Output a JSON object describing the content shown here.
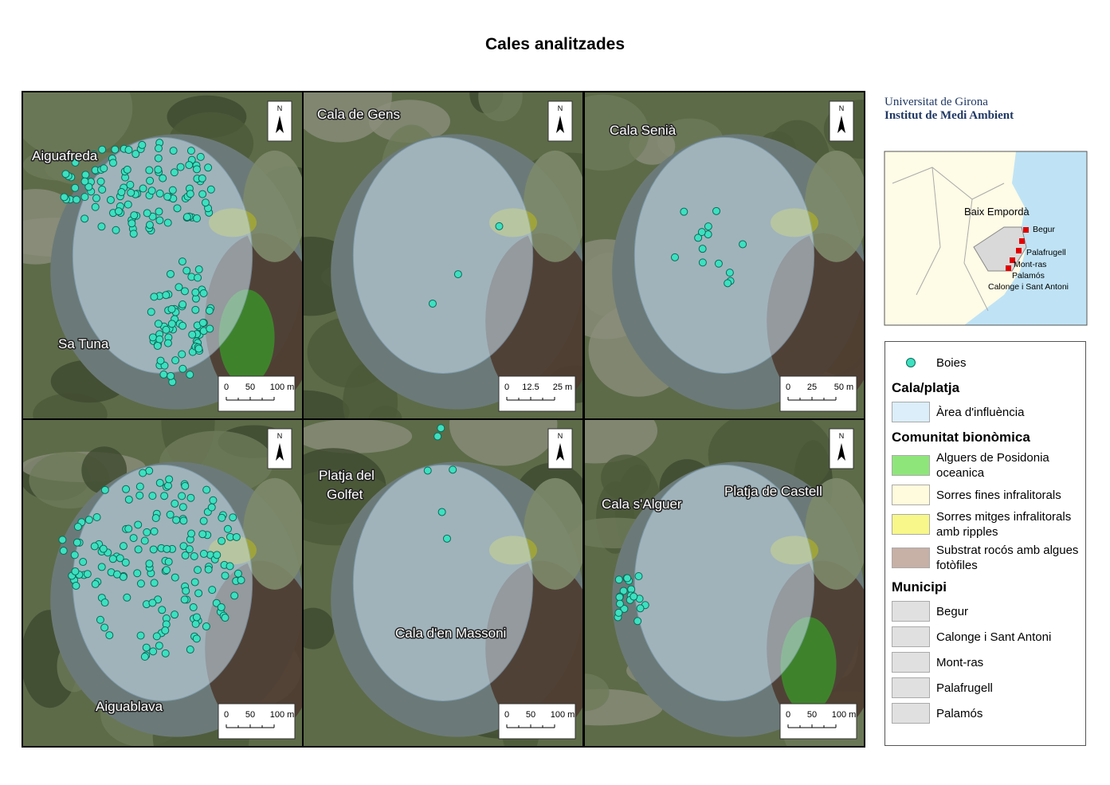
{
  "title": "Cales analitzades",
  "north": "N",
  "panels": [
    {
      "labels": [
        [
          "Aiguafreda"
        ],
        [
          "Sa Tuna"
        ]
      ],
      "scale": [
        "0",
        "50",
        "100 m"
      ]
    },
    {
      "labels": [
        [
          "Cala de Gens"
        ]
      ],
      "scale": [
        "0",
        "12.5",
        "25 m"
      ]
    },
    {
      "labels": [
        [
          "Cala Senià"
        ]
      ],
      "scale": [
        "0",
        "25",
        "50 m"
      ]
    },
    {
      "labels": [
        [
          "Aiguablava"
        ]
      ],
      "scale": [
        "0",
        "50",
        "100 m"
      ]
    },
    {
      "labels": [
        [
          "Platja del",
          "Golfet"
        ],
        [
          "Cala d'en Massoni"
        ]
      ],
      "scale": [
        "0",
        "50",
        "100 m"
      ]
    },
    {
      "labels": [
        [
          "Cala s'Alguer"
        ],
        [
          "Platja de Castell"
        ]
      ],
      "scale": [
        "0",
        "50",
        "100 m"
      ]
    }
  ],
  "logo": {
    "line1": "Universitat de Girona",
    "line2": "Institut de Medi Ambient"
  },
  "inset": {
    "region": "Baix Empordà",
    "towns": [
      "Begur",
      "Palafrugell",
      "Mont-ras",
      "Palamós",
      "Calonge i Sant Antoni"
    ]
  },
  "legend": {
    "buoys": "Boies",
    "sections": [
      {
        "title": "Cala/platja",
        "items": [
          "Àrea d'influència"
        ]
      },
      {
        "title": "Comunitat bionòmica",
        "items": [
          "Alguers de Posidonia oceanica",
          "Sorres fines infralitorals",
          "Sorres mitges infralitorals amb ripples",
          "Substrat rocós amb algues fotòfiles"
        ]
      },
      {
        "title": "Municipi",
        "items": [
          "Begur",
          "Calonge i Sant Antoni",
          "Mont-ras",
          "Palafrugell",
          "Palamós"
        ]
      }
    ]
  }
}
